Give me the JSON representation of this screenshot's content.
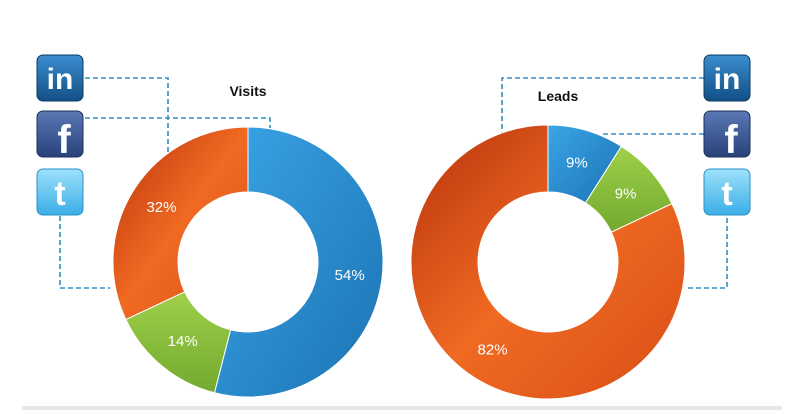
{
  "chart_data": [
    {
      "type": "pie",
      "title": "Visits",
      "donut": true,
      "categories": [
        "LinkedIn",
        "Facebook",
        "Twitter"
      ],
      "values": [
        54,
        14,
        32
      ],
      "labels": [
        "54%",
        "14%",
        "32%"
      ],
      "colors": [
        "#2a8ed0",
        "#8cc63e",
        "#e8561b"
      ]
    },
    {
      "type": "pie",
      "title": "Leads",
      "donut": true,
      "categories": [
        "LinkedIn",
        "Facebook",
        "Twitter"
      ],
      "values": [
        9,
        9,
        82
      ],
      "labels": [
        "9%",
        "9%",
        "82%"
      ],
      "colors": [
        "#2a8ed0",
        "#8cc63e",
        "#e8561b"
      ]
    }
  ],
  "icons": [
    {
      "name": "linkedin-icon",
      "glyph": "in",
      "color": "#1f6aa5"
    },
    {
      "name": "facebook-icon",
      "glyph": "f",
      "color": "#3b5998"
    },
    {
      "name": "twitter-icon",
      "glyph": "t",
      "color": "#5fc2f0"
    }
  ],
  "connector_color": "#2f8fc4"
}
